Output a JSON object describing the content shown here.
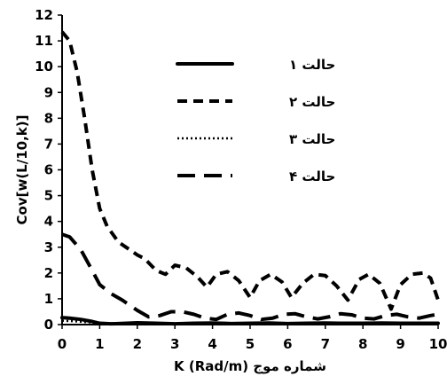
{
  "chart_data": {
    "type": "line",
    "title": "",
    "xlabel": "شماره موج K (Rad/m)",
    "ylabel": "Cov[w(L/10,k)]",
    "xlim": [
      0,
      10
    ],
    "ylim": [
      0,
      12
    ],
    "xticks": [
      "0",
      "1",
      "2",
      "3",
      "4",
      "5",
      "6",
      "7",
      "8",
      "9",
      "10"
    ],
    "yticks": [
      "0",
      "1",
      "2",
      "3",
      "4",
      "5",
      "6",
      "7",
      "8",
      "9",
      "10",
      "11",
      "12"
    ],
    "grid": false,
    "legend_position": "top-center",
    "series": [
      {
        "name": "حالت ۱",
        "style": "solid",
        "color": "#000000",
        "x": [
          0,
          0.2,
          0.5,
          0.8,
          1,
          1.3,
          1.5,
          2,
          2.5,
          3,
          3.5,
          4,
          4.5,
          5,
          5.5,
          6,
          6.5,
          7,
          7.5,
          8,
          8.5,
          9,
          9.5,
          10
        ],
        "y": [
          0.27,
          0.25,
          0.2,
          0.12,
          0.05,
          0.03,
          0.04,
          0.07,
          0.05,
          0.03,
          0.05,
          0.06,
          0.04,
          0.05,
          0.06,
          0.04,
          0.05,
          0.06,
          0.05,
          0.05,
          0.06,
          0.05,
          0.05,
          0.05
        ]
      },
      {
        "name": "حالت ۲",
        "style": "short-dash",
        "color": "#000000",
        "x": [
          0,
          0.2,
          0.4,
          0.6,
          0.8,
          1.0,
          1.2,
          1.5,
          1.8,
          2.0,
          2.2,
          2.5,
          2.75,
          3.0,
          3.3,
          3.6,
          3.85,
          4.1,
          4.4,
          4.7,
          5.0,
          5.25,
          5.55,
          5.85,
          6.1,
          6.4,
          6.7,
          7.0,
          7.3,
          7.6,
          7.9,
          8.15,
          8.45,
          8.75,
          9.0,
          9.3,
          9.6,
          9.8,
          10.0
        ],
        "y": [
          11.35,
          11.0,
          9.8,
          8.0,
          6.0,
          4.5,
          3.8,
          3.2,
          2.9,
          2.7,
          2.55,
          2.1,
          1.95,
          2.3,
          2.2,
          1.85,
          1.45,
          1.95,
          2.05,
          1.7,
          1.05,
          1.7,
          1.95,
          1.65,
          1.05,
          1.6,
          1.95,
          1.9,
          1.5,
          0.95,
          1.75,
          1.95,
          1.6,
          0.6,
          1.55,
          1.95,
          2.0,
          1.8,
          0.95
        ]
      },
      {
        "name": "حالت ۳",
        "style": "dotted",
        "color": "#000000",
        "x": [
          0,
          0.3,
          0.6,
          1,
          1.5,
          2,
          2.5,
          3,
          3.5,
          4,
          4.5,
          5,
          5.5,
          6,
          6.5,
          7,
          7.5,
          8,
          8.5,
          9,
          9.5,
          10
        ],
        "y": [
          0.15,
          0.13,
          0.1,
          0.06,
          0.04,
          0.05,
          0.04,
          0.03,
          0.04,
          0.04,
          0.03,
          0.04,
          0.04,
          0.03,
          0.04,
          0.04,
          0.03,
          0.04,
          0.04,
          0.03,
          0.04,
          0.04
        ]
      },
      {
        "name": "حالت ۴",
        "style": "long-dash",
        "color": "#000000",
        "x": [
          0,
          0.2,
          0.5,
          0.8,
          1.0,
          1.3,
          1.6,
          2.0,
          2.3,
          2.6,
          2.9,
          3.2,
          3.5,
          3.8,
          4.1,
          4.4,
          4.7,
          5.0,
          5.3,
          5.6,
          5.9,
          6.2,
          6.5,
          6.8,
          7.1,
          7.4,
          7.7,
          8.0,
          8.3,
          8.6,
          8.9,
          9.2,
          9.5,
          9.8,
          10.0
        ],
        "y": [
          3.5,
          3.4,
          2.9,
          2.1,
          1.55,
          1.2,
          0.95,
          0.55,
          0.3,
          0.35,
          0.5,
          0.5,
          0.4,
          0.25,
          0.2,
          0.4,
          0.45,
          0.35,
          0.2,
          0.25,
          0.4,
          0.42,
          0.3,
          0.22,
          0.3,
          0.42,
          0.38,
          0.25,
          0.22,
          0.35,
          0.4,
          0.3,
          0.25,
          0.35,
          0.4
        ]
      }
    ]
  }
}
